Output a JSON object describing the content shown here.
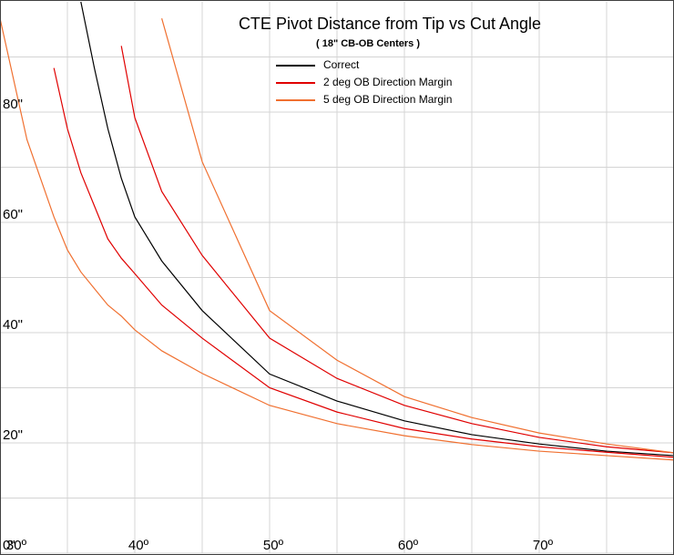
{
  "chart_data": {
    "type": "line",
    "title": "CTE Pivot Distance from Tip vs Cut Angle",
    "subtitle": "( 18\" CB-OB Centers )",
    "x": [
      30,
      32,
      34,
      35,
      36,
      37,
      38,
      39,
      40,
      42,
      45,
      50,
      55,
      60,
      65,
      70,
      75,
      80
    ],
    "series": [
      {
        "name": "Correct",
        "color": "#000000",
        "values": [
          null,
          null,
          null,
          null,
          100,
          88,
          77,
          68,
          61,
          53,
          44,
          32.5,
          27.6,
          24,
          21.5,
          19.8,
          18.5,
          17.7
        ]
      },
      {
        "name": "2 deg OB Direction Margin",
        "color": "#e00000",
        "values": [
          null,
          null,
          88,
          77,
          69,
          63,
          57,
          53.5,
          50.7,
          45,
          39,
          30,
          25.6,
          22.6,
          20.7,
          19.3,
          18.3,
          17.4
        ]
      },
      {
        "name": "2 deg OB Direction Margin",
        "color": "#e00000",
        "values": [
          null,
          null,
          null,
          null,
          null,
          null,
          null,
          92,
          79,
          65.6,
          54,
          39,
          31.7,
          26.8,
          23.5,
          21,
          19.3,
          18.2
        ]
      },
      {
        "name": "5 deg OB Direction Margin",
        "color": "#f07030",
        "values": [
          97,
          75,
          61,
          55,
          51,
          48,
          45,
          43,
          40.5,
          36.7,
          32.6,
          26.8,
          23.5,
          21.3,
          19.7,
          18.5,
          17.7,
          16.9
        ]
      },
      {
        "name": "5 deg OB Direction Margin",
        "color": "#f07030",
        "values": [
          null,
          null,
          null,
          null,
          null,
          null,
          null,
          null,
          null,
          97,
          71,
          44,
          35,
          28.4,
          24.6,
          21.8,
          19.8,
          18.2
        ]
      }
    ],
    "xlim": [
      30,
      80
    ],
    "ylim": [
      0,
      100
    ],
    "xticks": [
      {
        "value": 30,
        "label": "30º"
      },
      {
        "value": 35,
        "label": null
      },
      {
        "value": 40,
        "label": "40º"
      },
      {
        "value": 45,
        "label": null
      },
      {
        "value": 50,
        "label": "50º"
      },
      {
        "value": 55,
        "label": null
      },
      {
        "value": 60,
        "label": "60º"
      },
      {
        "value": 65,
        "label": null
      },
      {
        "value": 70,
        "label": "70º"
      },
      {
        "value": 75,
        "label": null
      }
    ],
    "yticks": [
      {
        "value": 0,
        "label": "0\""
      },
      {
        "value": 10,
        "label": null
      },
      {
        "value": 20,
        "label": "20\""
      },
      {
        "value": 30,
        "label": null
      },
      {
        "value": 40,
        "label": "40\""
      },
      {
        "value": 50,
        "label": null
      },
      {
        "value": 60,
        "label": "60\""
      },
      {
        "value": 70,
        "label": null
      },
      {
        "value": 80,
        "label": "80\""
      },
      {
        "value": 90,
        "label": null
      }
    ],
    "grid": true
  }
}
